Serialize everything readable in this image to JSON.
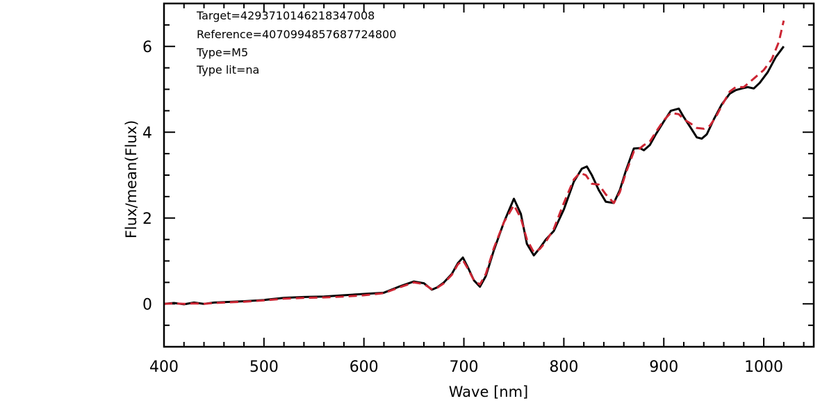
{
  "chart_data": {
    "type": "line",
    "xlabel": "Wave [nm]",
    "ylabel": "Flux/mean(Flux)",
    "xlim": [
      400,
      1050
    ],
    "ylim": [
      -1,
      7
    ],
    "x_ticks": [
      "400",
      "500",
      "600",
      "700",
      "800",
      "900",
      "1000"
    ],
    "y_ticks": [
      "0",
      "2",
      "4",
      "6"
    ],
    "annotations": [
      "Target=4293710146218347008",
      "Reference=4070994857687724800",
      "Type=M5",
      "Type lit=na"
    ],
    "series": [
      {
        "style": "solid",
        "color": "#000000",
        "x": [
          400,
          410,
          420,
          430,
          440,
          450,
          460,
          480,
          500,
          520,
          540,
          560,
          580,
          600,
          620,
          635,
          650,
          660,
          668,
          673,
          680,
          688,
          694,
          699,
          704,
          710,
          716,
          722,
          730,
          740,
          750,
          757,
          763,
          770,
          776,
          782,
          790,
          800,
          810,
          818,
          823,
          828,
          835,
          842,
          850,
          856,
          862,
          870,
          876,
          880,
          886,
          892,
          900,
          907,
          915,
          920,
          927,
          933,
          938,
          943,
          950,
          958,
          966,
          972,
          978,
          984,
          990,
          996,
          1004,
          1012,
          1020
        ],
        "y": [
          0.0,
          0.02,
          -0.01,
          0.03,
          0.0,
          0.03,
          0.04,
          0.06,
          0.09,
          0.14,
          0.16,
          0.17,
          0.2,
          0.23,
          0.26,
          0.4,
          0.52,
          0.48,
          0.33,
          0.38,
          0.5,
          0.7,
          0.95,
          1.08,
          0.85,
          0.55,
          0.4,
          0.65,
          1.25,
          1.9,
          2.45,
          2.1,
          1.4,
          1.13,
          1.3,
          1.5,
          1.7,
          2.2,
          2.85,
          3.15,
          3.2,
          3.0,
          2.65,
          2.38,
          2.35,
          2.65,
          3.1,
          3.62,
          3.63,
          3.58,
          3.7,
          3.95,
          4.25,
          4.5,
          4.55,
          4.35,
          4.1,
          3.88,
          3.85,
          3.95,
          4.3,
          4.65,
          4.9,
          4.98,
          5.02,
          5.05,
          5.02,
          5.15,
          5.4,
          5.75,
          6.0
        ]
      },
      {
        "style": "dashed",
        "color": "#cc2533",
        "x": [
          400,
          410,
          420,
          430,
          440,
          450,
          460,
          480,
          500,
          520,
          540,
          560,
          580,
          600,
          620,
          635,
          650,
          660,
          668,
          673,
          680,
          688,
          694,
          699,
          704,
          710,
          716,
          722,
          730,
          740,
          750,
          757,
          763,
          770,
          776,
          782,
          790,
          800,
          810,
          816,
          822,
          828,
          835,
          842,
          850,
          856,
          862,
          870,
          876,
          880,
          886,
          892,
          900,
          907,
          915,
          920,
          927,
          933,
          940,
          946,
          952,
          958,
          966,
          972,
          980,
          990,
          1000,
          1008,
          1015,
          1020
        ],
        "y": [
          0.0,
          0.01,
          0.0,
          0.01,
          0.0,
          0.02,
          0.03,
          0.05,
          0.08,
          0.12,
          0.14,
          0.15,
          0.17,
          0.2,
          0.25,
          0.38,
          0.5,
          0.46,
          0.34,
          0.37,
          0.48,
          0.68,
          0.92,
          1.02,
          0.82,
          0.55,
          0.45,
          0.7,
          1.3,
          1.9,
          2.3,
          2.0,
          1.5,
          1.2,
          1.28,
          1.45,
          1.75,
          2.35,
          2.9,
          3.05,
          3.0,
          2.8,
          2.78,
          2.55,
          2.35,
          2.6,
          3.05,
          3.55,
          3.62,
          3.7,
          3.78,
          4.0,
          4.28,
          4.45,
          4.42,
          4.3,
          4.2,
          4.1,
          4.08,
          4.15,
          4.35,
          4.62,
          4.95,
          5.05,
          5.05,
          5.25,
          5.45,
          5.7,
          6.1,
          6.6
        ]
      }
    ]
  }
}
